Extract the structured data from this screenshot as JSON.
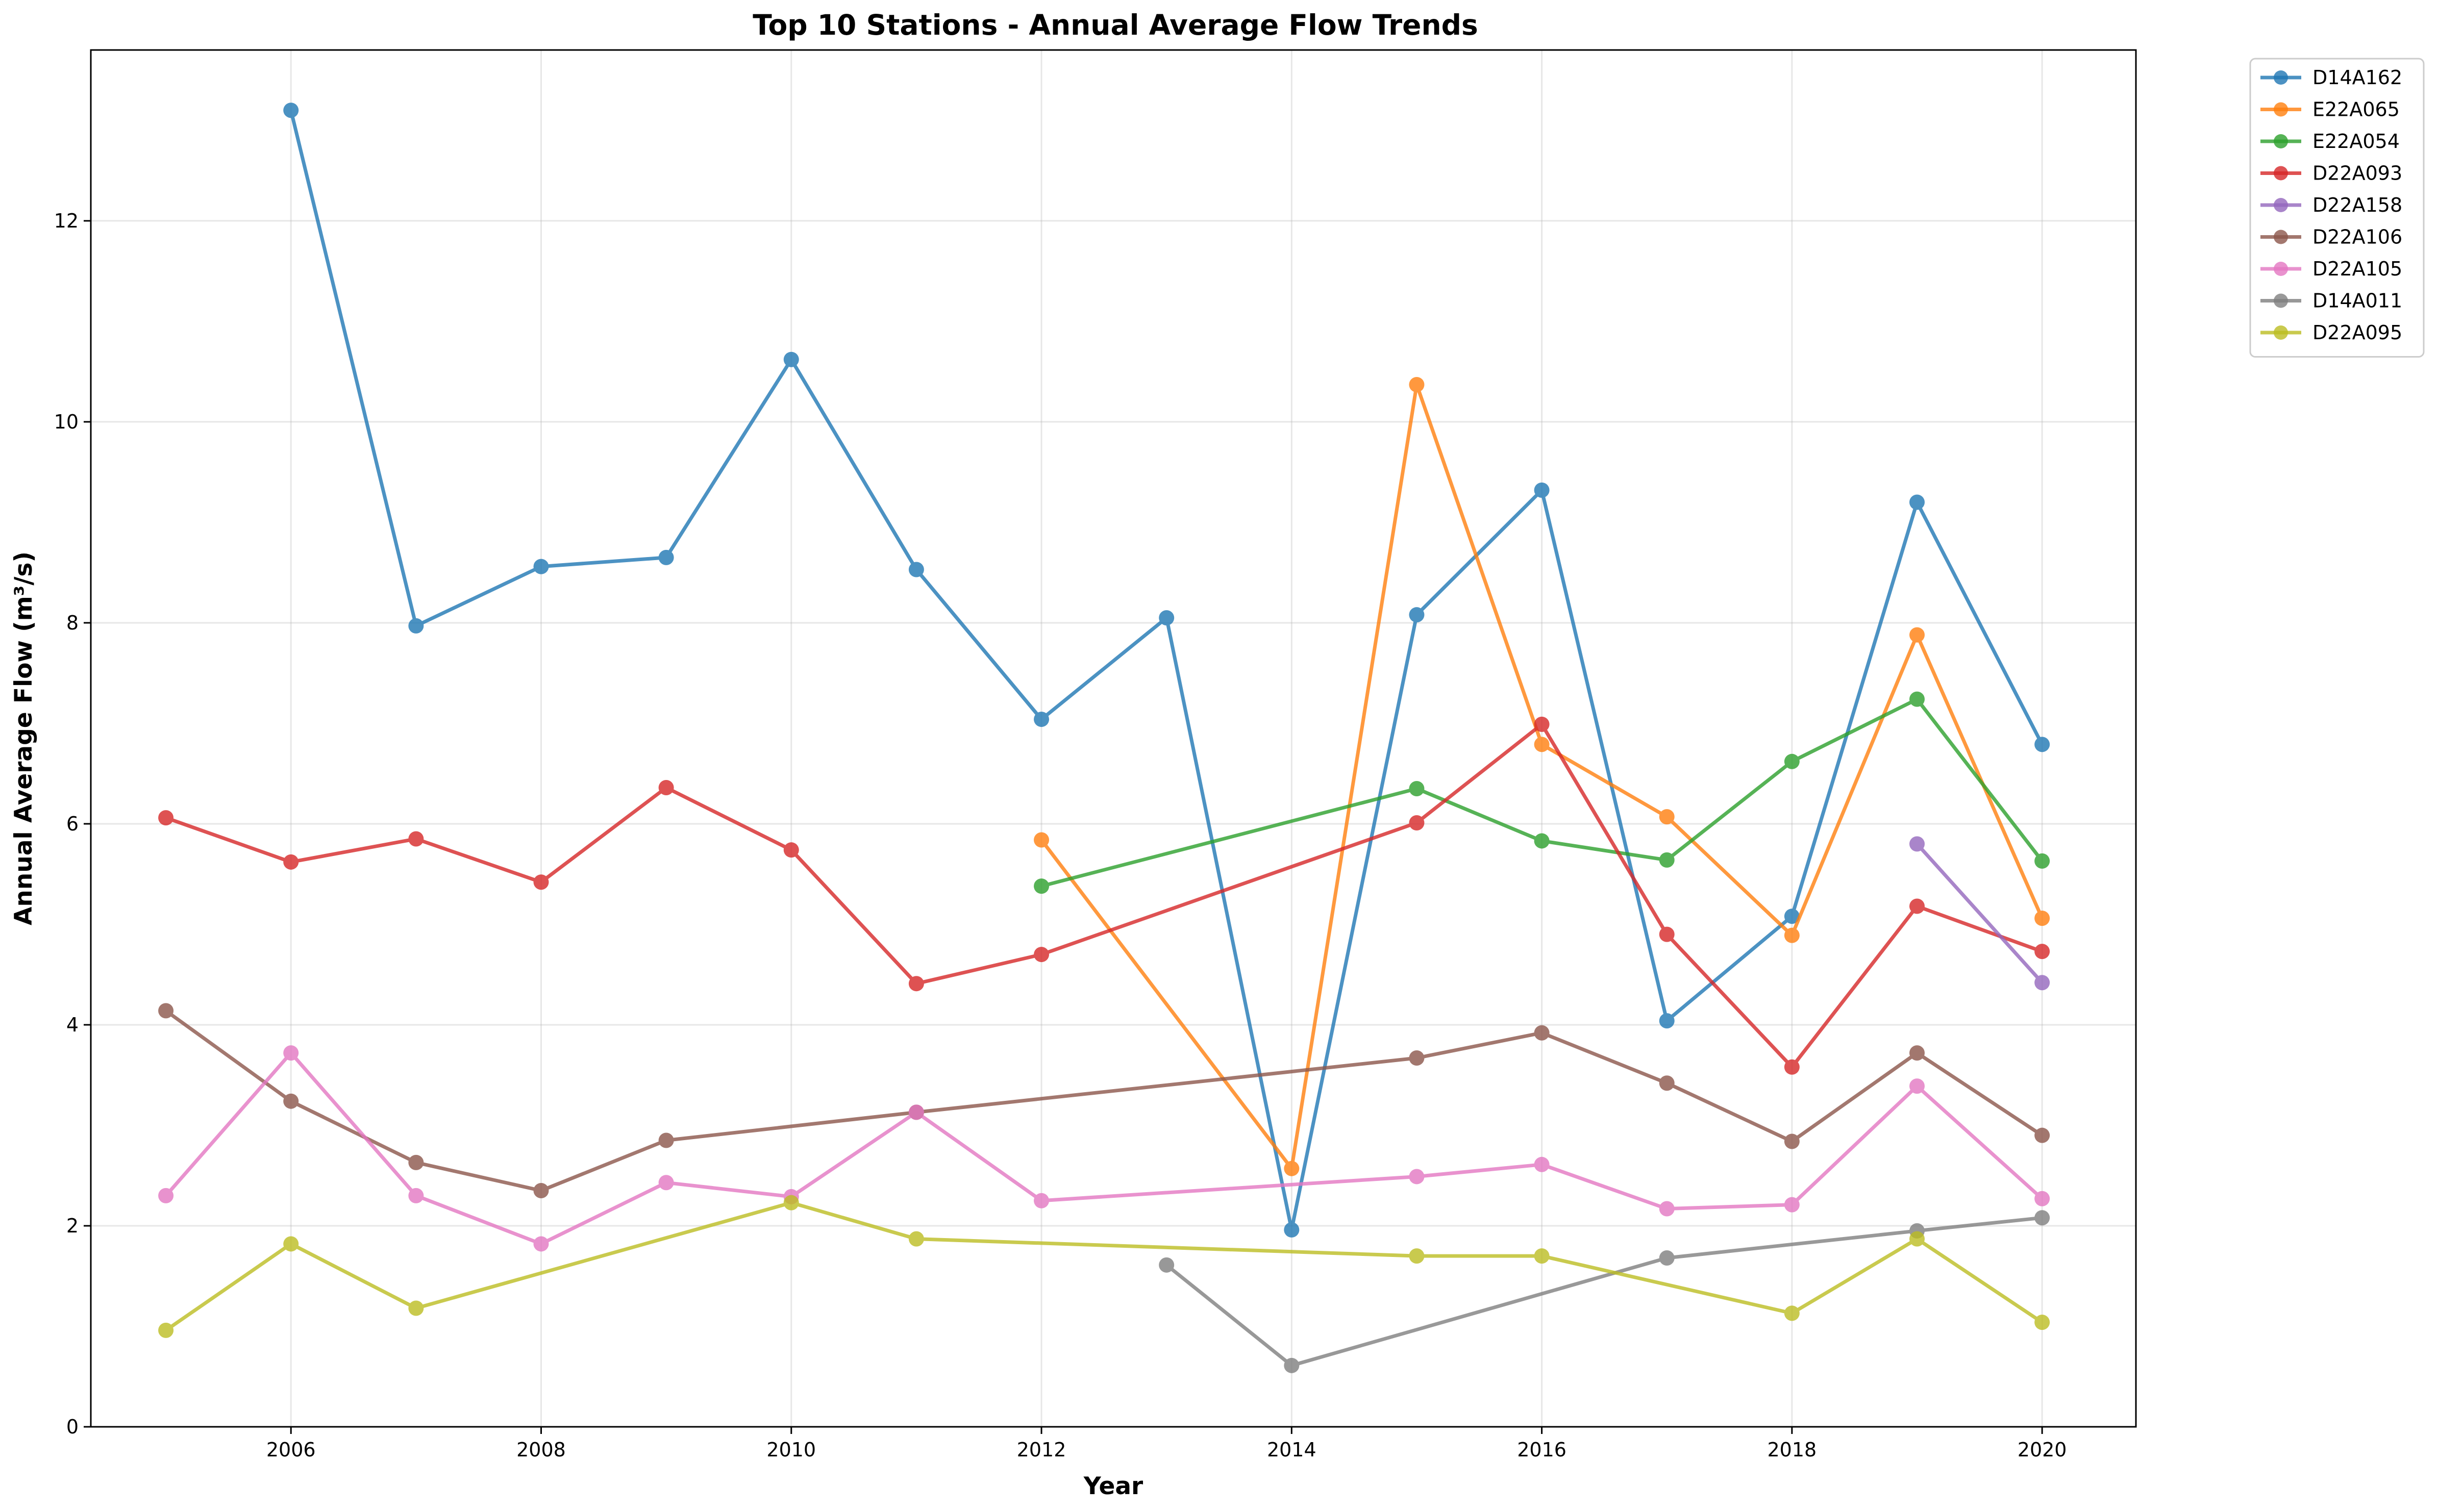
{
  "chart_data": {
    "type": "line",
    "title": "Top 10 Stations - Annual Average Flow Trends",
    "xlabel": "Year",
    "ylabel": "Annual Average Flow (m³/s)",
    "xlim": [
      2004.4,
      2020.75
    ],
    "ylim": [
      0,
      13.7
    ],
    "x_ticks": [
      2006,
      2008,
      2010,
      2012,
      2014,
      2016,
      2018,
      2020
    ],
    "y_ticks": [
      0,
      2,
      4,
      6,
      8,
      10,
      12
    ],
    "grid": true,
    "legend_position": "outside top-right",
    "series": [
      {
        "name": "D14A162",
        "color": "#1f77b4",
        "points": [
          [
            2006,
            13.1
          ],
          [
            2007,
            7.97
          ],
          [
            2008,
            8.56
          ],
          [
            2009,
            8.65
          ],
          [
            2010,
            10.62
          ],
          [
            2011,
            8.53
          ],
          [
            2012,
            7.04
          ],
          [
            2013,
            8.05
          ],
          [
            2014,
            1.96
          ],
          [
            2015,
            8.08
          ],
          [
            2016,
            9.32
          ],
          [
            2017,
            4.04
          ],
          [
            2018,
            5.08
          ],
          [
            2019,
            9.2
          ],
          [
            2020,
            6.79
          ]
        ]
      },
      {
        "name": "E22A065",
        "color": "#ff7f0e",
        "points": [
          [
            2012,
            5.84
          ],
          [
            2014,
            2.57
          ],
          [
            2015,
            10.37
          ],
          [
            2016,
            6.79
          ],
          [
            2017,
            6.07
          ],
          [
            2018,
            4.89
          ],
          [
            2019,
            7.88
          ],
          [
            2020,
            5.06
          ]
        ]
      },
      {
        "name": "E22A054",
        "color": "#2ca02c",
        "points": [
          [
            2012,
            5.38
          ],
          [
            2015,
            6.35
          ],
          [
            2016,
            5.83
          ],
          [
            2017,
            5.64
          ],
          [
            2018,
            6.62
          ],
          [
            2019,
            7.24
          ],
          [
            2020,
            5.63
          ]
        ]
      },
      {
        "name": "D22A093",
        "color": "#d62728",
        "points": [
          [
            2005,
            6.06
          ],
          [
            2006,
            5.62
          ],
          [
            2007,
            5.85
          ],
          [
            2008,
            5.42
          ],
          [
            2009,
            6.36
          ],
          [
            2010,
            5.74
          ],
          [
            2011,
            4.41
          ],
          [
            2012,
            4.7
          ],
          [
            2015,
            6.01
          ],
          [
            2016,
            6.99
          ],
          [
            2017,
            4.9
          ],
          [
            2018,
            3.58
          ],
          [
            2019,
            5.18
          ],
          [
            2020,
            4.73
          ]
        ]
      },
      {
        "name": "D22A158",
        "color": "#9467bd",
        "points": [
          [
            2019,
            5.8
          ],
          [
            2020,
            4.42
          ]
        ]
      },
      {
        "name": "D22A106",
        "color": "#8c564b",
        "points": [
          [
            2005,
            4.14
          ],
          [
            2006,
            3.24
          ],
          [
            2007,
            2.63
          ],
          [
            2008,
            2.35
          ],
          [
            2009,
            2.85
          ],
          [
            2011,
            3.13
          ],
          [
            2015,
            3.67
          ],
          [
            2016,
            3.92
          ],
          [
            2017,
            3.42
          ],
          [
            2018,
            2.84
          ],
          [
            2019,
            3.72
          ],
          [
            2020,
            2.9
          ]
        ]
      },
      {
        "name": "D22A105",
        "color": "#e377c2",
        "points": [
          [
            2005,
            2.3
          ],
          [
            2006,
            3.72
          ],
          [
            2007,
            2.3
          ],
          [
            2008,
            1.82
          ],
          [
            2009,
            2.43
          ],
          [
            2010,
            2.29
          ],
          [
            2011,
            3.13
          ],
          [
            2012,
            2.25
          ],
          [
            2015,
            2.49
          ],
          [
            2016,
            2.61
          ],
          [
            2017,
            2.17
          ],
          [
            2018,
            2.21
          ],
          [
            2019,
            3.39
          ],
          [
            2020,
            2.27
          ]
        ]
      },
      {
        "name": "D14A011",
        "color": "#7f7f7f",
        "points": [
          [
            2013,
            1.61
          ],
          [
            2014,
            0.61
          ],
          [
            2017,
            1.68
          ],
          [
            2019,
            1.95
          ],
          [
            2020,
            2.08
          ]
        ]
      },
      {
        "name": "D22A095",
        "color": "#bcbd22",
        "points": [
          [
            2005,
            0.96
          ],
          [
            2006,
            1.82
          ],
          [
            2007,
            1.18
          ],
          [
            2010,
            2.23
          ],
          [
            2011,
            1.87
          ],
          [
            2015,
            1.7
          ],
          [
            2016,
            1.7
          ],
          [
            2018,
            1.13
          ],
          [
            2019,
            1.87
          ],
          [
            2020,
            1.04
          ]
        ]
      }
    ]
  }
}
